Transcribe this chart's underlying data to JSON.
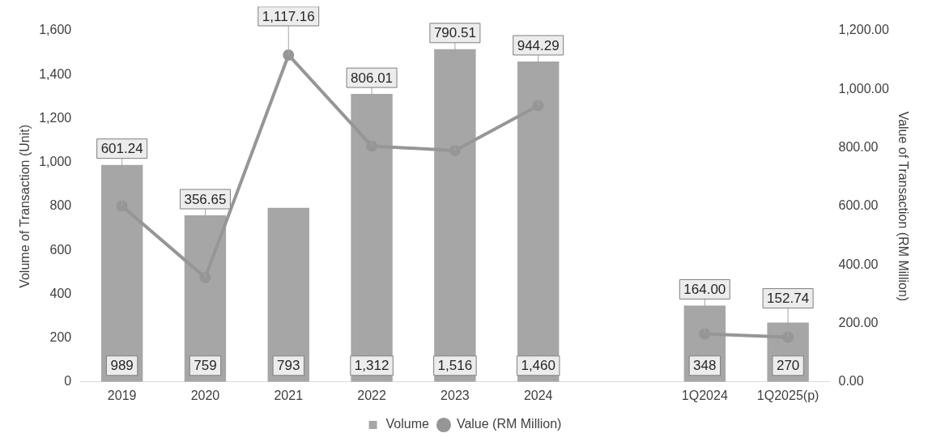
{
  "chart_data": {
    "type": "bar",
    "categories": [
      "2019",
      "2020",
      "2021",
      "2022",
      "2023",
      "2024",
      null,
      "1Q2024",
      "1Q2025(p)"
    ],
    "ylabel": "Volume of Transaction (Unit)",
    "y2label": "Value of Transaction (RM Million)",
    "ylim": [
      0,
      1600
    ],
    "yticks": [
      {
        "value": 0,
        "label": "0"
      },
      {
        "value": 200,
        "label": "200"
      },
      {
        "value": 400,
        "label": "400"
      },
      {
        "value": 600,
        "label": "600"
      },
      {
        "value": 800,
        "label": "800"
      },
      {
        "value": 1000,
        "label": "1,000"
      },
      {
        "value": 1200,
        "label": "1,200"
      },
      {
        "value": 1400,
        "label": "1,400"
      },
      {
        "value": 1600,
        "label": "1,600"
      }
    ],
    "y2lim": [
      0,
      1200
    ],
    "y2ticks": [
      {
        "value": 0,
        "label": "0.00"
      },
      {
        "value": 200,
        "label": "200.00"
      },
      {
        "value": 400,
        "label": "400.00"
      },
      {
        "value": 600,
        "label": "600.00"
      },
      {
        "value": 800,
        "label": "800.00"
      },
      {
        "value": 1000,
        "label": "1,000.00"
      },
      {
        "value": 1200,
        "label": "1,200.00"
      }
    ],
    "series": [
      {
        "name": "Volume",
        "color": "#a6a6a6",
        "values": [
          989,
          759,
          793,
          1312,
          1516,
          1460,
          null,
          348,
          270
        ],
        "value_labels": [
          "989",
          "759",
          "793",
          "1,312",
          "1,516",
          "1,460",
          null,
          "348",
          "270"
        ]
      },
      {
        "name": "Value (RM Million)",
        "type": "line",
        "axis": "y2",
        "color": "#969696",
        "marker": "circle",
        "values": [
          601.24,
          356.65,
          1117.16,
          806.01,
          790.51,
          944.29,
          null,
          164.0,
          152.74
        ],
        "value_labels": [
          "601.24",
          "356.65",
          "1,117.16",
          "806.01",
          "790.51",
          "944.29",
          null,
          "164.00",
          "152.74"
        ]
      }
    ],
    "grid": false,
    "legend": "bottom"
  }
}
